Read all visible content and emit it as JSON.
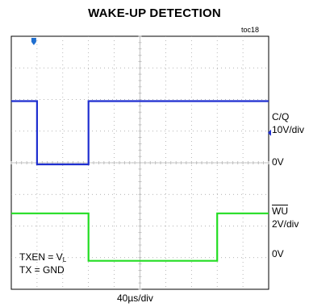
{
  "chart_data": {
    "type": "line",
    "title": "WAKE-UP DETECTION",
    "figure_id": "toc18",
    "xlabel": "40µs/div",
    "grid": true,
    "x_divisions": 10,
    "y_divisions": 8,
    "series": [
      {
        "name": "C/Q",
        "scale": "10V/div",
        "zero_label": "0V",
        "color": "#1f2fd0",
        "high_level_div": 2.0,
        "low_level_div": 0.0,
        "low_start_div": 1.0,
        "low_end_div": 3.0,
        "zero_div": 0.0
      },
      {
        "name": "WU",
        "scale": "2V/div",
        "zero_label": "0V",
        "color": "#22dd22",
        "high_level_div": 1.5,
        "low_level_div": 0.0,
        "low_start_div": 3.0,
        "low_end_div": 8.0,
        "zero_div": 0.0
      }
    ],
    "annotations": {
      "txen": "TXEN = V",
      "txen_sub": "L",
      "tx": "TX = GND"
    }
  }
}
